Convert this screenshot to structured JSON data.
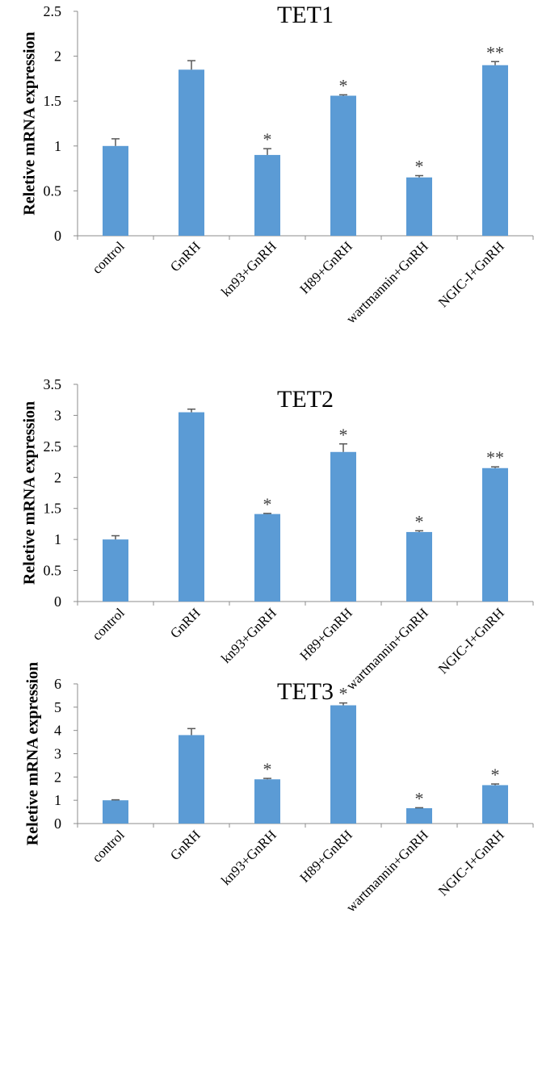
{
  "chart_data": [
    {
      "type": "bar",
      "title": "TET1",
      "ylabel": "Reletive mRNA expression",
      "xlabel": "",
      "categories": [
        "control",
        "GnRH",
        "kn93+GnRH",
        "H89+GnRH",
        "wartmannin+GnRH",
        "NGIC-I+GnRH"
      ],
      "values": [
        1.0,
        1.85,
        0.9,
        1.56,
        0.65,
        1.9
      ],
      "errors": [
        0.08,
        0.1,
        0.07,
        0.01,
        0.02,
        0.04
      ],
      "significance": [
        "",
        "",
        "*",
        "*",
        "*",
        "**"
      ],
      "ylim": [
        0,
        2.5
      ],
      "yticks": [
        "0",
        "0.5",
        "1",
        "1.5",
        "2",
        "2.5"
      ],
      "bar_color": "#5B9BD5",
      "grid": false,
      "legend": "none"
    },
    {
      "type": "bar",
      "title": "TET2",
      "ylabel": "Reletive mRNA expression",
      "xlabel": "",
      "categories": [
        "control",
        "GnRH",
        "kn93+GnRH",
        "H89+GnRH",
        "wartmannin+GnRH",
        "NGIC-I+GnRH"
      ],
      "values": [
        1.0,
        3.05,
        1.41,
        2.41,
        1.12,
        2.15
      ],
      "errors": [
        0.06,
        0.05,
        0.01,
        0.13,
        0.02,
        0.02
      ],
      "significance": [
        "",
        "",
        "*",
        "*",
        "*",
        "**"
      ],
      "ylim": [
        0,
        3.5
      ],
      "yticks": [
        "0",
        "0.5",
        "1",
        "1.5",
        "2",
        "2.5",
        "3",
        "3.5"
      ],
      "bar_color": "#5B9BD5",
      "grid": false,
      "legend": "none"
    },
    {
      "type": "bar",
      "title": "TET3",
      "ylabel": "Reletive mRNA expression",
      "xlabel": "",
      "categories": [
        "control",
        "GnRH",
        "kn93+GnRH",
        "H89+GnRH",
        "wartmannin+GnRH",
        "NGIC-I+GnRH"
      ],
      "values": [
        1.0,
        3.8,
        1.9,
        5.08,
        0.66,
        1.65
      ],
      "errors": [
        0.02,
        0.28,
        0.04,
        0.1,
        0.02,
        0.05
      ],
      "significance": [
        "",
        "",
        "*",
        "*",
        "*",
        "*"
      ],
      "ylim": [
        0,
        6
      ],
      "yticks": [
        "0",
        "1",
        "2",
        "3",
        "4",
        "5",
        "6"
      ],
      "bar_color": "#5B9BD5",
      "grid": false,
      "legend": "none"
    }
  ]
}
